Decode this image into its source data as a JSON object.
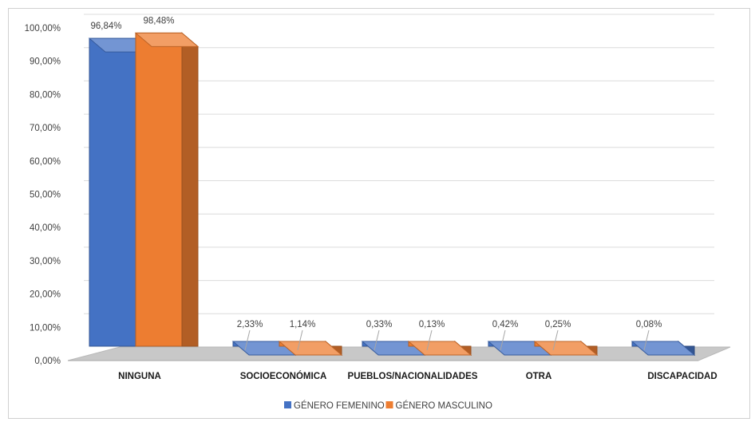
{
  "chart_data": {
    "type": "bar",
    "categories": [
      "NINGUNA",
      "SOCIOECONÓMICA",
      "PUEBLOS/NACIONALIDADES",
      "OTRA",
      "DISCAPACIDAD"
    ],
    "series": [
      {
        "name": "GÉNERO FEMENINO",
        "color": "#4472c4",
        "values": [
          96.84,
          2.33,
          0.33,
          0.42,
          0.08
        ],
        "labels": [
          "96,84%",
          "2,33%",
          "0,33%",
          "0,42%",
          "0,08%"
        ]
      },
      {
        "name": "GÉNERO MASCULINO",
        "color": "#ed7d31",
        "values": [
          98.48,
          1.14,
          0.13,
          0.25,
          null
        ],
        "labels": [
          "98,48%",
          "1,14%",
          "0,13%",
          "0,25%",
          ""
        ]
      }
    ],
    "yticks": [
      "0,00%",
      "10,00%",
      "20,00%",
      "30,00%",
      "40,00%",
      "50,00%",
      "60,00%",
      "70,00%",
      "80,00%",
      "90,00%",
      "100,00%"
    ],
    "ylim": [
      0,
      100
    ],
    "grid": true,
    "legend_position": "bottom",
    "style": "3d-column"
  }
}
